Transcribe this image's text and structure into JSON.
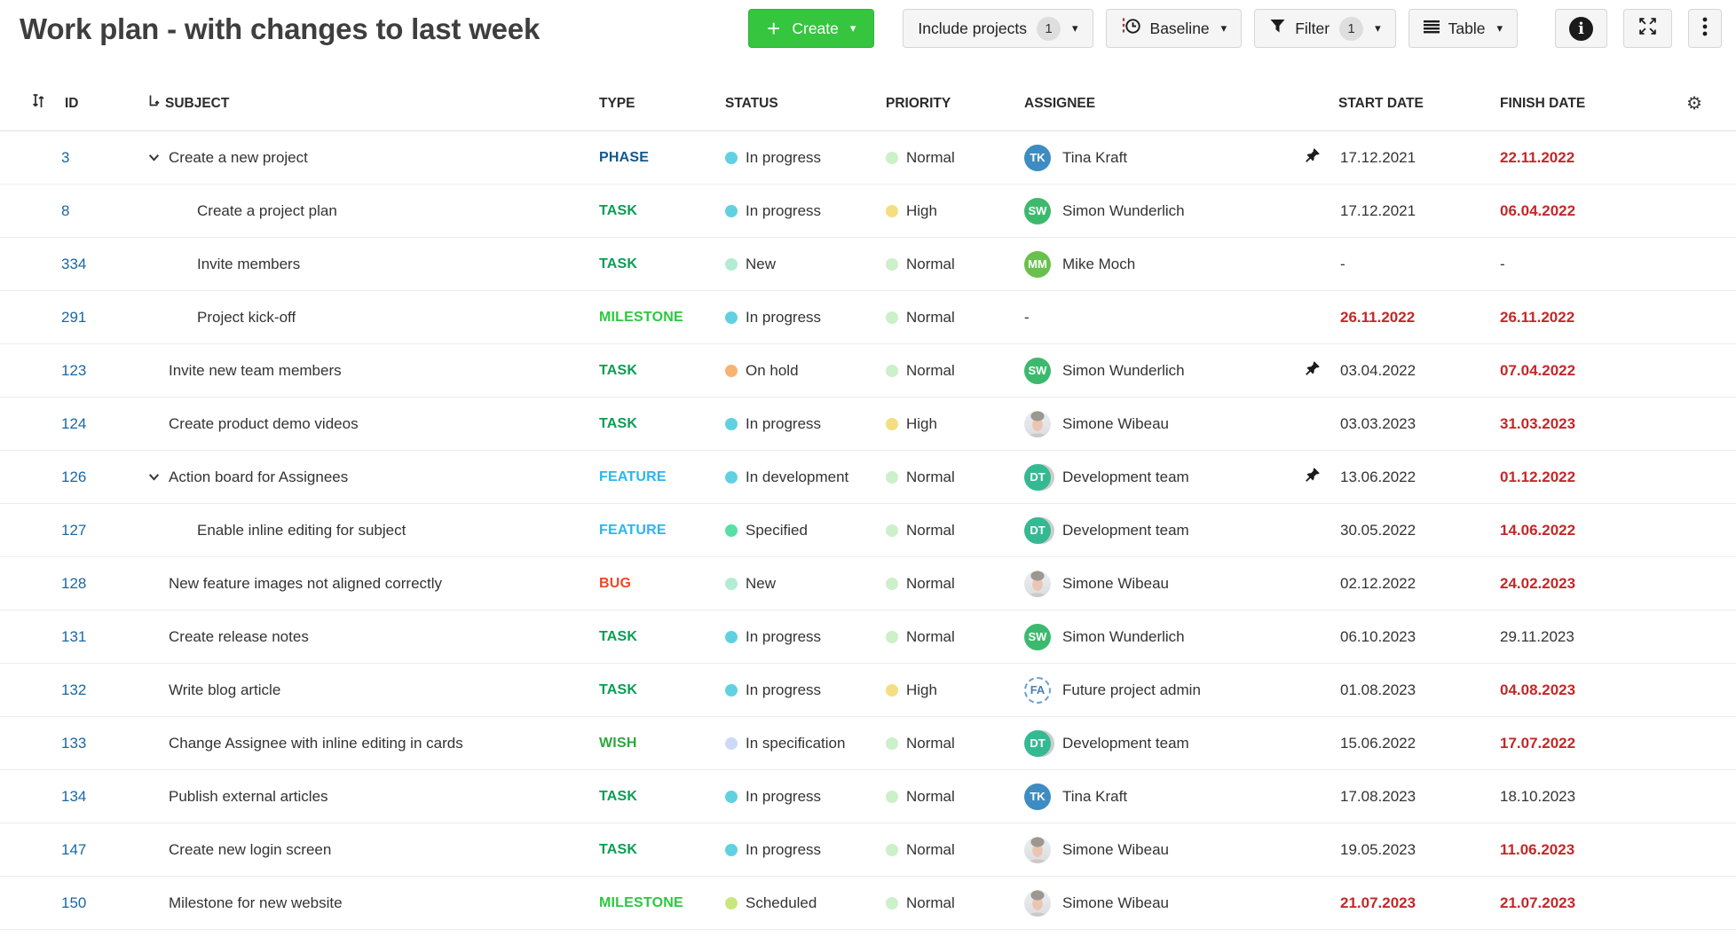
{
  "header": {
    "title": "Work plan - with changes to last week",
    "create_label": "Create",
    "include_projects_label": "Include projects",
    "include_projects_count": "1",
    "baseline_label": "Baseline",
    "filter_label": "Filter",
    "filter_count": "1",
    "view_label": "Table"
  },
  "icons": {
    "caret": "▾",
    "plus": "+",
    "gear": "⚙",
    "info": "i"
  },
  "columns": {
    "id": "ID",
    "subject": "SUBJECT",
    "type": "TYPE",
    "status": "STATUS",
    "priority": "PRIORITY",
    "assignee": "ASSIGNEE",
    "start": "START DATE",
    "finish": "FINISH DATE"
  },
  "type_colors": {
    "PHASE": "#14588c",
    "TASK": "#089e54",
    "MILESTONE": "#2cc840",
    "FEATURE": "#28b7f2",
    "BUG": "#ec4b26",
    "WISH": "#2ca83e"
  },
  "status_colors": {
    "In progress": "#61d1e2",
    "New": "#b3ecd3",
    "On hold": "#f8b373",
    "In development": "#61d1e2",
    "Specified": "#57dfa5",
    "In specification": "#ccd9f7",
    "Scheduled": "#c8e87f"
  },
  "priority_colors": {
    "Normal": "#ccf0c8",
    "High": "#f5de81"
  },
  "rows": [
    {
      "id": "3",
      "level": 0,
      "expand": true,
      "subject": "Create a new project",
      "type": "PHASE",
      "status": "In progress",
      "priority": "Normal",
      "assignee": {
        "kind": "initials",
        "initials": "TK",
        "name": "Tina Kraft",
        "color": "#3e8cc1"
      },
      "pinned": true,
      "start": {
        "text": "17.12.2021",
        "late": false
      },
      "finish": {
        "text": "22.11.2022",
        "late": true
      }
    },
    {
      "id": "8",
      "level": 1,
      "expand": false,
      "subject": "Create a project plan",
      "type": "TASK",
      "status": "In progress",
      "priority": "High",
      "assignee": {
        "kind": "initials",
        "initials": "SW",
        "name": "Simon Wunderlich",
        "color": "#3db96d"
      },
      "pinned": false,
      "start": {
        "text": "17.12.2021",
        "late": false
      },
      "finish": {
        "text": "06.04.2022",
        "late": true
      }
    },
    {
      "id": "334",
      "level": 1,
      "expand": false,
      "subject": "Invite members",
      "type": "TASK",
      "status": "New",
      "priority": "Normal",
      "assignee": {
        "kind": "initials",
        "initials": "MM",
        "name": "Mike Moch",
        "color": "#6ac04c"
      },
      "pinned": false,
      "start": {
        "text": "-",
        "late": false
      },
      "finish": {
        "text": "-",
        "late": false
      }
    },
    {
      "id": "291",
      "level": 1,
      "expand": false,
      "subject": "Project kick-off",
      "type": "MILESTONE",
      "status": "In progress",
      "priority": "Normal",
      "assignee": {
        "kind": "none",
        "name": "-"
      },
      "pinned": false,
      "start": {
        "text": "26.11.2022",
        "late": true
      },
      "finish": {
        "text": "26.11.2022",
        "late": true
      }
    },
    {
      "id": "123",
      "level": 0,
      "expand": false,
      "subject": "Invite new team members",
      "type": "TASK",
      "status": "On hold",
      "priority": "Normal",
      "assignee": {
        "kind": "initials",
        "initials": "SW",
        "name": "Simon Wunderlich",
        "color": "#3db96d"
      },
      "pinned": true,
      "start": {
        "text": "03.04.2022",
        "late": false
      },
      "finish": {
        "text": "07.04.2022",
        "late": true
      }
    },
    {
      "id": "124",
      "level": 0,
      "expand": false,
      "subject": "Create product demo videos",
      "type": "TASK",
      "status": "In progress",
      "priority": "High",
      "assignee": {
        "kind": "photo",
        "name": "Simone Wibeau"
      },
      "pinned": false,
      "start": {
        "text": "03.03.2023",
        "late": false
      },
      "finish": {
        "text": "31.03.2023",
        "late": true
      }
    },
    {
      "id": "126",
      "level": 0,
      "expand": true,
      "subject": "Action board for Assignees",
      "type": "FEATURE",
      "status": "In development",
      "priority": "Normal",
      "assignee": {
        "kind": "group",
        "initials": "DT",
        "name": "Development team",
        "color": "#35b992"
      },
      "pinned": true,
      "start": {
        "text": "13.06.2022",
        "late": false
      },
      "finish": {
        "text": "01.12.2022",
        "late": true
      }
    },
    {
      "id": "127",
      "level": 1,
      "expand": false,
      "subject": "Enable inline editing for subject",
      "type": "FEATURE",
      "status": "Specified",
      "priority": "Normal",
      "assignee": {
        "kind": "group",
        "initials": "DT",
        "name": "Development team",
        "color": "#35b992"
      },
      "pinned": false,
      "start": {
        "text": "30.05.2022",
        "late": false
      },
      "finish": {
        "text": "14.06.2022",
        "late": true
      }
    },
    {
      "id": "128",
      "level": 0,
      "expand": false,
      "subject": "New feature images not aligned correctly",
      "type": "BUG",
      "status": "New",
      "priority": "Normal",
      "assignee": {
        "kind": "photo",
        "name": "Simone Wibeau"
      },
      "pinned": false,
      "start": {
        "text": "02.12.2022",
        "late": false
      },
      "finish": {
        "text": "24.02.2023",
        "late": true
      }
    },
    {
      "id": "131",
      "level": 0,
      "expand": false,
      "subject": "Create release notes",
      "type": "TASK",
      "status": "In progress",
      "priority": "Normal",
      "assignee": {
        "kind": "initials",
        "initials": "SW",
        "name": "Simon Wunderlich",
        "color": "#3db96d"
      },
      "pinned": false,
      "start": {
        "text": "06.10.2023",
        "late": false
      },
      "finish": {
        "text": "29.11.2023",
        "late": false
      }
    },
    {
      "id": "132",
      "level": 0,
      "expand": false,
      "subject": "Write blog article",
      "type": "TASK",
      "status": "In progress",
      "priority": "High",
      "assignee": {
        "kind": "placeholder",
        "initials": "FA",
        "name": "Future project admin"
      },
      "pinned": false,
      "start": {
        "text": "01.08.2023",
        "late": false
      },
      "finish": {
        "text": "04.08.2023",
        "late": true
      }
    },
    {
      "id": "133",
      "level": 0,
      "expand": false,
      "subject": "Change Assignee with inline editing in cards",
      "type": "WISH",
      "status": "In specification",
      "priority": "Normal",
      "assignee": {
        "kind": "group",
        "initials": "DT",
        "name": "Development team",
        "color": "#35b992"
      },
      "pinned": false,
      "start": {
        "text": "15.06.2022",
        "late": false
      },
      "finish": {
        "text": "17.07.2022",
        "late": true
      }
    },
    {
      "id": "134",
      "level": 0,
      "expand": false,
      "subject": "Publish external articles",
      "type": "TASK",
      "status": "In progress",
      "priority": "Normal",
      "assignee": {
        "kind": "initials",
        "initials": "TK",
        "name": "Tina Kraft",
        "color": "#3e8cc1"
      },
      "pinned": false,
      "start": {
        "text": "17.08.2023",
        "late": false
      },
      "finish": {
        "text": "18.10.2023",
        "late": false
      }
    },
    {
      "id": "147",
      "level": 0,
      "expand": false,
      "subject": "Create new login screen",
      "type": "TASK",
      "status": "In progress",
      "priority": "Normal",
      "assignee": {
        "kind": "photo",
        "name": "Simone Wibeau"
      },
      "pinned": false,
      "start": {
        "text": "19.05.2023",
        "late": false
      },
      "finish": {
        "text": "11.06.2023",
        "late": true
      }
    },
    {
      "id": "150",
      "level": 0,
      "expand": false,
      "subject": "Milestone for new website",
      "type": "MILESTONE",
      "status": "Scheduled",
      "priority": "Normal",
      "assignee": {
        "kind": "photo",
        "name": "Simone Wibeau"
      },
      "pinned": false,
      "start": {
        "text": "21.07.2023",
        "late": true
      },
      "finish": {
        "text": "21.07.2023",
        "late": true
      }
    }
  ]
}
